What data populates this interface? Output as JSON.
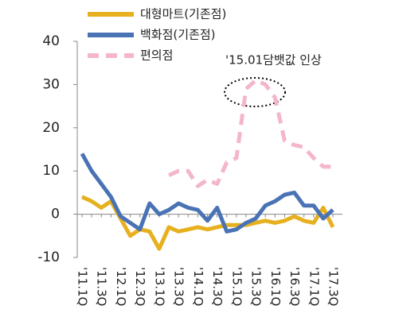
{
  "chart_data": {
    "type": "line",
    "categories": [
      "'11.1Q",
      null,
      "'11.3Q",
      null,
      "'12.1Q",
      null,
      "'12.3Q",
      null,
      "'13.1Q",
      null,
      "'13.3Q",
      null,
      "'14.1Q",
      null,
      "'14.3Q",
      null,
      "'15.1Q",
      null,
      "'15.3Q",
      null,
      "'16.1Q",
      null,
      "'16.3Q",
      null,
      "'17.1Q",
      null,
      "'17.3Q"
    ],
    "series": [
      {
        "name": "대형마트(기존점)",
        "color": "#e6b01e",
        "dash": false,
        "values": [
          4,
          3,
          1.5,
          3,
          -1,
          -5,
          -3.5,
          -4,
          -8,
          -3,
          -4,
          -3.5,
          -3,
          -3.5,
          -3,
          -2.5,
          -2.5,
          -2.5,
          -2,
          -1.5,
          -2,
          -1.5,
          -0.5,
          -1.5,
          -2,
          1.5,
          -3
        ]
      },
      {
        "name": "백화점(기존점)",
        "color": "#4a73b5",
        "dash": false,
        "values": [
          14,
          10,
          7,
          4,
          -0.5,
          -2,
          -3.5,
          2.5,
          0,
          1,
          2.5,
          1.5,
          1,
          -1.5,
          1.5,
          -4,
          -3.5,
          -2,
          -1,
          2,
          3,
          4.5,
          5,
          2,
          2,
          -1,
          1
        ]
      },
      {
        "name": "편의점",
        "color": "#f4b6c8",
        "dash": true,
        "values": [
          null,
          null,
          null,
          null,
          null,
          null,
          null,
          null,
          null,
          9,
          10,
          10,
          6.5,
          8,
          7,
          12,
          13,
          29,
          31,
          30,
          27,
          17,
          16,
          15.5,
          13,
          11,
          11
        ]
      }
    ],
    "annotation": "'15.01담뱃값 인상",
    "ylim": [
      -10,
      40
    ],
    "yticks": [
      -10,
      0,
      10,
      20,
      30,
      40
    ]
  }
}
